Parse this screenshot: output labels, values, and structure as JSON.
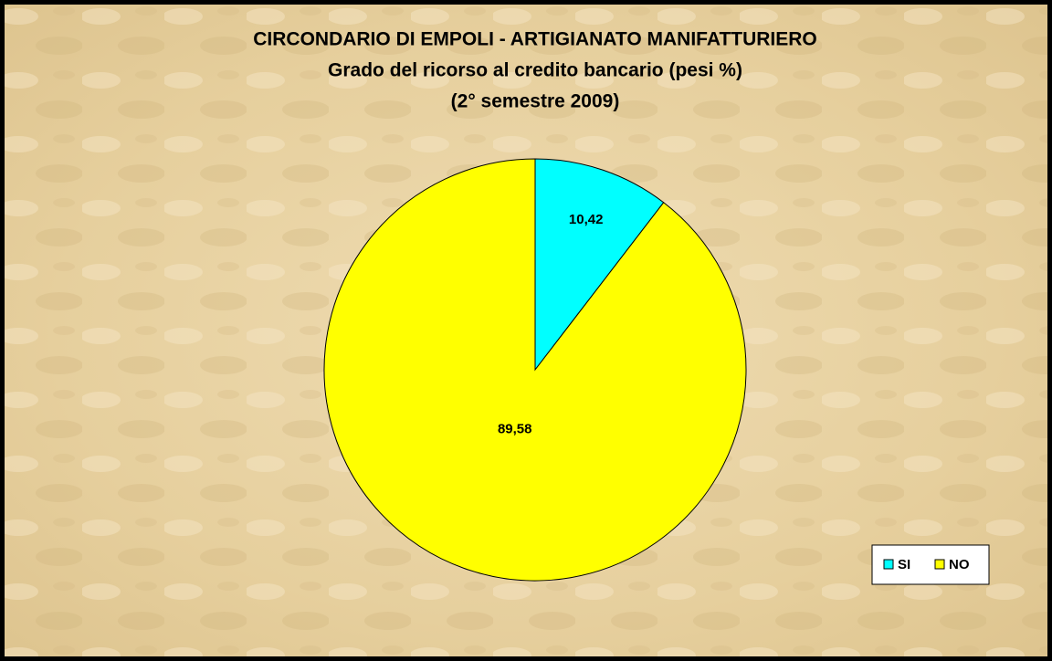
{
  "chart_data": {
    "type": "pie",
    "title": "CIRCONDARIO DI EMPOLI - ARTIGIANATO MANIFATTURIERO",
    "subtitle": [
      "Grado del ricorso al credito bancario (pesi %)",
      "(2° semestre 2009)"
    ],
    "categories": [
      "SI",
      "NO"
    ],
    "values": [
      10.42,
      89.58
    ],
    "value_labels": [
      "10,42",
      "89,58"
    ],
    "colors": [
      "#00ffff",
      "#ffff00"
    ],
    "legend": "right"
  }
}
